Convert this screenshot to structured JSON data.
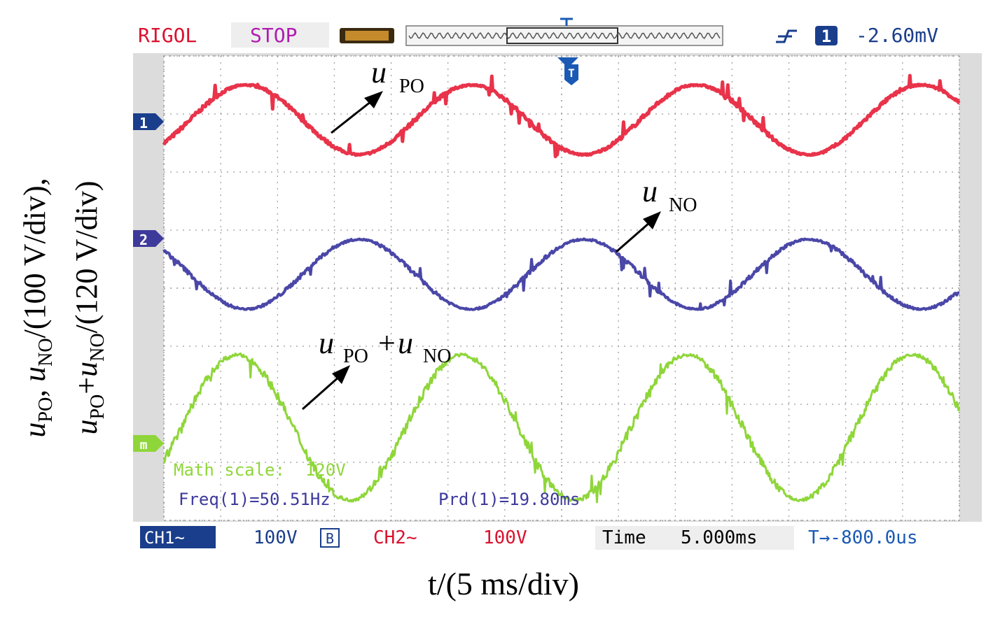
{
  "scope": {
    "brand": "RIGOL",
    "run_state": "STOP",
    "trigger": {
      "source": "1",
      "level": "-2.60mV"
    },
    "channel_markers": {
      "ch1": "1",
      "ch2": "2",
      "math": "m"
    },
    "trigger_marker": "T",
    "readouts": {
      "math_scale": "Math scale:  120V",
      "freq": "Freq(1)=50.51Hz",
      "period": "Prd(1)=19.80ms"
    },
    "status": {
      "ch1_label": "CH1~",
      "ch1_scale": "100V",
      "bandwidth": "B",
      "ch2_label": "CH2~",
      "ch2_scale": "100V",
      "time_label": "Time",
      "time_value": "5.000ms",
      "trig_offset": "T→-800.0us"
    }
  },
  "axes": {
    "x_title": "t/(5 ms/div)"
  },
  "colors": {
    "ch1": "#e8334a",
    "ch2": "#4a47a8",
    "math": "#8fd63a",
    "grid_bg": "#ffffff",
    "frame": "#dcdcdc",
    "brand": "#d9122e",
    "stop": "#b01cb0"
  },
  "chart_data": {
    "type": "line",
    "xlabel": "t/(5 ms/div)",
    "ylabel": "uPO, uNO/(100 V/div), uPO+uNO/(120 V/div)",
    "x_unit": "div",
    "xlim": [
      0,
      14
    ],
    "ylim": [
      0,
      8
    ],
    "grid": true,
    "series": [
      {
        "name": "uPO",
        "channel": "CH1",
        "period_div": 3.96,
        "phase_div": 0.46,
        "center_div": 6.9,
        "amplitude_div": 0.6
      },
      {
        "name": "uNO",
        "channel": "CH2",
        "period_div": 3.96,
        "phase_div": 2.44,
        "center_div": 4.24,
        "amplitude_div": 0.6
      },
      {
        "name": "uPO+uNO",
        "channel": "Math",
        "period_div": 3.96,
        "phase_div": 0.3,
        "center_div": 1.6,
        "amplitude_div": 1.25
      }
    ],
    "annotations": [
      {
        "series": "uPO",
        "base": "u",
        "sub1": "PO"
      },
      {
        "series": "uNO",
        "base": "u",
        "sub1": "NO"
      },
      {
        "series": "uPO+uNO",
        "base": "u",
        "sub1": "PO",
        "plus": "+",
        "base2": "u",
        "sub2": "NO"
      }
    ],
    "frequency_hz": 50.51,
    "period_ms": 19.8
  }
}
